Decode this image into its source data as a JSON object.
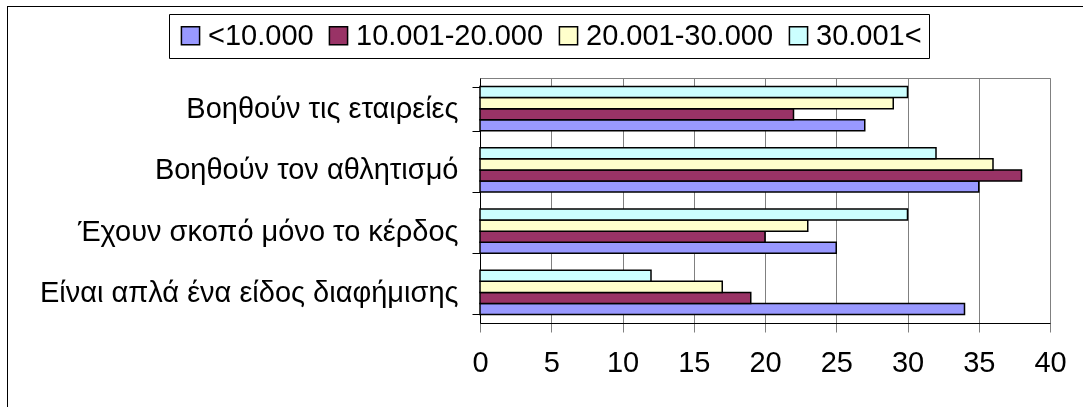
{
  "chart_data": {
    "type": "bar",
    "orientation": "horizontal",
    "categories": [
      "Βοηθούν τις εταιρείες",
      "Βοηθούν τον αθλητισμό",
      "Έχουν σκοπό μόνο το κέρδος",
      "Είναι απλά ένα είδος διαφήμισης"
    ],
    "series": [
      {
        "name": "<10.000",
        "color": "#9999ff",
        "values": [
          27,
          35,
          25,
          34
        ]
      },
      {
        "name": "10.001-20.000",
        "color": "#993366",
        "values": [
          22,
          38,
          20,
          19
        ]
      },
      {
        "name": "20.001-30.000",
        "color": "#ffffcc",
        "values": [
          29,
          36,
          23,
          17
        ]
      },
      {
        "name": "30.001<",
        "color": "#ccffff",
        "values": [
          30,
          32,
          30,
          12
        ]
      }
    ],
    "xlim": [
      0,
      40
    ],
    "xticks": [
      0,
      5,
      10,
      15,
      20,
      25,
      30,
      35,
      40
    ],
    "grid": "x",
    "legend": "top"
  }
}
